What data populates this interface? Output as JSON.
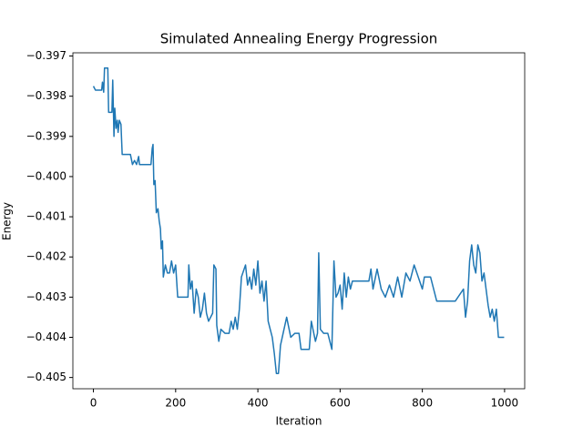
{
  "chart_data": {
    "type": "line",
    "title": "Simulated Annealing Energy Progression",
    "x_label": "Iteration",
    "y_label": "Energy",
    "xlim": [
      -49.95,
      1048.95
    ],
    "ylim": [
      -0.40528,
      -0.39692
    ],
    "xticks": [
      0,
      200,
      400,
      600,
      800,
      1000
    ],
    "yticks": [
      {
        "value": -0.405,
        "label": "−0.405"
      },
      {
        "value": -0.404,
        "label": "−0.404"
      },
      {
        "value": -0.403,
        "label": "−0.403"
      },
      {
        "value": -0.402,
        "label": "−0.402"
      },
      {
        "value": -0.401,
        "label": "−0.401"
      },
      {
        "value": -0.4,
        "label": "−0.400"
      },
      {
        "value": -0.399,
        "label": "−0.399"
      },
      {
        "value": -0.398,
        "label": "−0.398"
      },
      {
        "value": -0.397,
        "label": "−0.397"
      }
    ],
    "grid": false,
    "series": [
      {
        "color": "#1f77b4",
        "x": [
          0,
          5,
          20,
          22,
          25,
          27,
          35,
          37,
          45,
          47,
          50,
          52,
          55,
          58,
          60,
          63,
          67,
          70,
          90,
          95,
          100,
          105,
          110,
          112,
          140,
          143,
          145,
          147,
          150,
          153,
          157,
          160,
          163,
          165,
          168,
          170,
          175,
          180,
          185,
          190,
          195,
          200,
          205,
          230,
          232,
          236,
          240,
          245,
          250,
          255,
          260,
          265,
          270,
          275,
          280,
          290,
          293,
          298,
          300,
          305,
          310,
          320,
          330,
          335,
          340,
          345,
          350,
          355,
          360,
          370,
          375,
          380,
          385,
          390,
          395,
          400,
          405,
          410,
          415,
          420,
          425,
          430,
          435,
          440,
          445,
          450,
          455,
          470,
          480,
          490,
          500,
          505,
          525,
          530,
          540,
          545,
          548,
          552,
          560,
          570,
          580,
          585,
          590,
          595,
          600,
          605,
          610,
          615,
          620,
          625,
          630,
          670,
          675,
          680,
          690,
          700,
          710,
          720,
          730,
          740,
          750,
          760,
          770,
          780,
          790,
          800,
          805,
          820,
          830,
          835,
          860,
          880,
          900,
          905,
          910,
          915,
          920,
          925,
          930,
          935,
          940,
          945,
          950,
          955,
          960,
          965,
          970,
          975,
          980,
          985,
          999
        ],
        "values": [
          -0.39775,
          -0.39785,
          -0.39785,
          -0.39765,
          -0.3979,
          -0.3973,
          -0.3973,
          -0.3984,
          -0.3984,
          -0.3976,
          -0.399,
          -0.3983,
          -0.3988,
          -0.3986,
          -0.3989,
          -0.3986,
          -0.3987,
          -0.39945,
          -0.39945,
          -0.3997,
          -0.3996,
          -0.3997,
          -0.3995,
          -0.3997,
          -0.3997,
          -0.3993,
          -0.3992,
          -0.4002,
          -0.4001,
          -0.4009,
          -0.4008,
          -0.4011,
          -0.4013,
          -0.4018,
          -0.4016,
          -0.4025,
          -0.4022,
          -0.4024,
          -0.4024,
          -0.4021,
          -0.4024,
          -0.4022,
          -0.403,
          -0.403,
          -0.4022,
          -0.4028,
          -0.4026,
          -0.4034,
          -0.4028,
          -0.403,
          -0.4035,
          -0.4033,
          -0.4029,
          -0.4034,
          -0.4036,
          -0.4034,
          -0.4022,
          -0.4023,
          -0.4037,
          -0.4041,
          -0.4038,
          -0.4039,
          -0.4039,
          -0.4036,
          -0.4038,
          -0.4035,
          -0.4038,
          -0.4033,
          -0.4025,
          -0.4022,
          -0.4027,
          -0.4025,
          -0.4028,
          -0.4023,
          -0.4027,
          -0.4021,
          -0.4029,
          -0.4026,
          -0.4031,
          -0.4026,
          -0.4036,
          -0.4038,
          -0.404,
          -0.4044,
          -0.4049,
          -0.4049,
          -0.4042,
          -0.4035,
          -0.404,
          -0.4039,
          -0.4039,
          -0.4043,
          -0.4043,
          -0.4036,
          -0.4041,
          -0.4039,
          -0.4019,
          -0.4038,
          -0.4039,
          -0.4039,
          -0.4043,
          -0.4021,
          -0.403,
          -0.4029,
          -0.4027,
          -0.4033,
          -0.4024,
          -0.403,
          -0.4025,
          -0.4028,
          -0.4026,
          -0.4026,
          -0.4023,
          -0.4028,
          -0.4023,
          -0.4028,
          -0.403,
          -0.4027,
          -0.403,
          -0.4025,
          -0.403,
          -0.4024,
          -0.4026,
          -0.4022,
          -0.4025,
          -0.4028,
          -0.4025,
          -0.4025,
          -0.4029,
          -0.4031,
          -0.4031,
          -0.4031,
          -0.4028,
          -0.4035,
          -0.4031,
          -0.4021,
          -0.4017,
          -0.4022,
          -0.4024,
          -0.4017,
          -0.4019,
          -0.4026,
          -0.4024,
          -0.4028,
          -0.4032,
          -0.4035,
          -0.4033,
          -0.4036,
          -0.4033,
          -0.404,
          -0.404
        ]
      }
    ]
  }
}
